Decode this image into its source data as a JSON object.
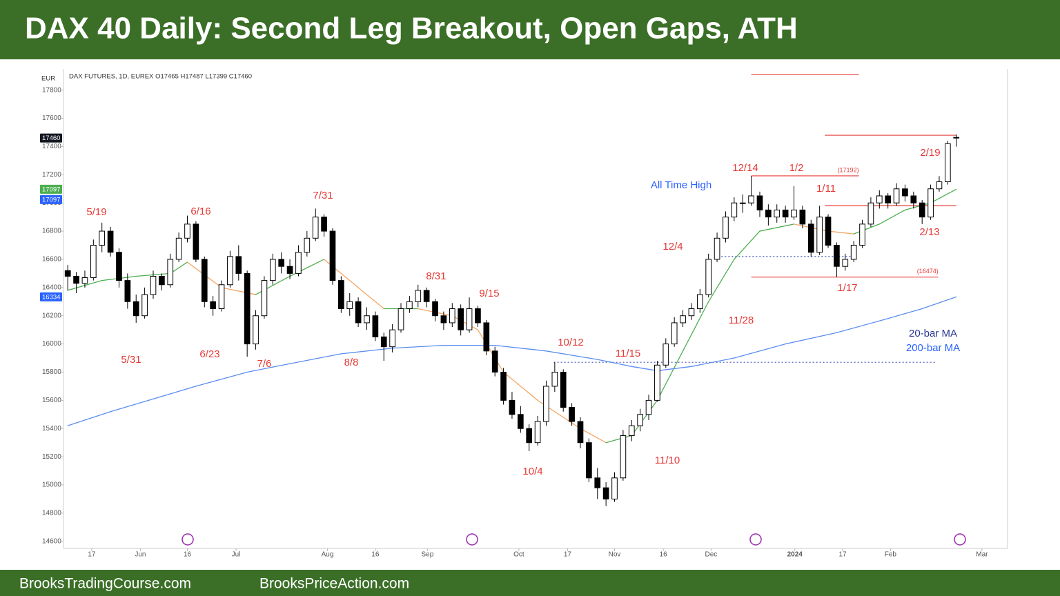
{
  "header": {
    "title": "DAX 40 Daily: Second Leg Breakout, Open Gaps, ATH"
  },
  "chart_data": {
    "type": "candlestick",
    "symbol_info": "DAX FUTURES, 1D, EUREX  O17465 H17487 L17399 C17460",
    "currency": "EUR",
    "up_color": "#ffffff",
    "down_color": "#000000",
    "ohlc": [
      [
        16520,
        16560,
        16380,
        16480
      ],
      [
        16480,
        16510,
        16360,
        16430
      ],
      [
        16430,
        16520,
        16400,
        16470
      ],
      [
        16470,
        16740,
        16450,
        16700
      ],
      [
        16700,
        16860,
        16650,
        16800
      ],
      [
        16800,
        16830,
        16620,
        16650
      ],
      [
        16650,
        16680,
        16400,
        16450
      ],
      [
        16450,
        16500,
        16250,
        16300
      ],
      [
        16300,
        16350,
        16150,
        16200
      ],
      [
        16200,
        16400,
        16180,
        16350
      ],
      [
        16350,
        16520,
        16320,
        16480
      ],
      [
        16480,
        16500,
        16380,
        16420
      ],
      [
        16420,
        16640,
        16400,
        16600
      ],
      [
        16600,
        16790,
        16580,
        16750
      ],
      [
        16750,
        16910,
        16720,
        16850
      ],
      [
        16850,
        16870,
        16580,
        16600
      ],
      [
        16600,
        16620,
        16260,
        16300
      ],
      [
        16300,
        16340,
        16200,
        16250
      ],
      [
        16250,
        16450,
        16230,
        16420
      ],
      [
        16420,
        16660,
        16400,
        16620
      ],
      [
        16620,
        16700,
        16450,
        16500
      ],
      [
        16500,
        16520,
        15910,
        16000
      ],
      [
        16000,
        16240,
        15960,
        16200
      ],
      [
        16200,
        16480,
        16180,
        16450
      ],
      [
        16450,
        16640,
        16420,
        16600
      ],
      [
        16600,
        16650,
        16500,
        16550
      ],
      [
        16550,
        16600,
        16460,
        16500
      ],
      [
        16500,
        16700,
        16480,
        16650
      ],
      [
        16650,
        16800,
        16620,
        16750
      ],
      [
        16750,
        16960,
        16730,
        16900
      ],
      [
        16900,
        16920,
        16760,
        16800
      ],
      [
        16800,
        16820,
        16420,
        16450
      ],
      [
        16450,
        16480,
        16220,
        16250
      ],
      [
        16250,
        16360,
        16200,
        16300
      ],
      [
        16300,
        16330,
        16120,
        16150
      ],
      [
        16150,
        16260,
        16100,
        16200
      ],
      [
        16200,
        16230,
        16020,
        16050
      ],
      [
        16050,
        16080,
        15880,
        15980
      ],
      [
        15980,
        16140,
        15940,
        16100
      ],
      [
        16100,
        16290,
        16080,
        16250
      ],
      [
        16250,
        16340,
        16220,
        16300
      ],
      [
        16300,
        16420,
        16260,
        16380
      ],
      [
        16380,
        16400,
        16260,
        16300
      ],
      [
        16300,
        16320,
        16160,
        16200
      ],
      [
        16200,
        16230,
        16100,
        16150
      ],
      [
        16150,
        16290,
        16120,
        16250
      ],
      [
        16250,
        16280,
        16060,
        16100
      ],
      [
        16100,
        16330,
        16080,
        16250
      ],
      [
        16250,
        16270,
        16120,
        16150
      ],
      [
        16150,
        16170,
        15920,
        15950
      ],
      [
        15950,
        15980,
        15770,
        15800
      ],
      [
        15800,
        15830,
        15570,
        15600
      ],
      [
        15600,
        15660,
        15470,
        15500
      ],
      [
        15500,
        15560,
        15370,
        15400
      ],
      [
        15400,
        15430,
        15240,
        15300
      ],
      [
        15300,
        15490,
        15280,
        15450
      ],
      [
        15450,
        15740,
        15420,
        15700
      ],
      [
        15700,
        15870,
        15660,
        15800
      ],
      [
        15800,
        15820,
        15520,
        15550
      ],
      [
        15550,
        15580,
        15420,
        15450
      ],
      [
        15450,
        15480,
        15260,
        15300
      ],
      [
        15300,
        15330,
        15020,
        15050
      ],
      [
        15050,
        15120,
        14900,
        14980
      ],
      [
        14980,
        15020,
        14850,
        14900
      ],
      [
        14900,
        15090,
        14880,
        15050
      ],
      [
        15050,
        15390,
        15030,
        15350
      ],
      [
        15350,
        15460,
        15310,
        15420
      ],
      [
        15420,
        15540,
        15380,
        15500
      ],
      [
        15500,
        15640,
        15460,
        15600
      ],
      [
        15600,
        15880,
        15590,
        15850
      ],
      [
        15850,
        16040,
        15830,
        16000
      ],
      [
        16000,
        16190,
        15980,
        16150
      ],
      [
        16150,
        16240,
        16120,
        16200
      ],
      [
        16200,
        16290,
        16170,
        16250
      ],
      [
        16250,
        16390,
        16220,
        16350
      ],
      [
        16350,
        16640,
        16330,
        16600
      ],
      [
        16600,
        16790,
        16580,
        16750
      ],
      [
        16750,
        16940,
        16720,
        16900
      ],
      [
        16900,
        17040,
        16870,
        17000
      ],
      [
        17000,
        17060,
        16930,
        17000
      ],
      [
        17000,
        17192,
        16980,
        17050
      ],
      [
        17050,
        17080,
        16900,
        16950
      ],
      [
        16950,
        16990,
        16840,
        16900
      ],
      [
        16900,
        16990,
        16860,
        16950
      ],
      [
        16950,
        16980,
        16860,
        16900
      ],
      [
        16900,
        17120,
        16880,
        16950
      ],
      [
        16950,
        16980,
        16820,
        16850
      ],
      [
        16850,
        16880,
        16620,
        16650
      ],
      [
        16650,
        16980,
        16630,
        16900
      ],
      [
        16900,
        16920,
        16680,
        16700
      ],
      [
        16700,
        16720,
        16474,
        16550
      ],
      [
        16550,
        16640,
        16520,
        16600
      ],
      [
        16600,
        16730,
        16580,
        16700
      ],
      [
        16700,
        16880,
        16680,
        16850
      ],
      [
        16850,
        17040,
        16830,
        17000
      ],
      [
        17000,
        17090,
        16960,
        17050
      ],
      [
        17050,
        17070,
        16960,
        17000
      ],
      [
        17000,
        17140,
        16980,
        17100
      ],
      [
        17100,
        17130,
        17010,
        17050
      ],
      [
        17050,
        17080,
        16960,
        17000
      ],
      [
        17000,
        17020,
        16850,
        16900
      ],
      [
        16900,
        17130,
        16880,
        17100
      ],
      [
        17100,
        17190,
        17080,
        17150
      ],
      [
        17150,
        17440,
        17130,
        17420
      ],
      [
        17465,
        17487,
        17399,
        17460
      ]
    ],
    "moving_averages": [
      {
        "name": "20-bar MA",
        "color": "#4caf50",
        "down_color": "#f4a460",
        "x": [
          0,
          4,
          8,
          12,
          14,
          18,
          22,
          26,
          30,
          33,
          37,
          41,
          45,
          48,
          51,
          55,
          60,
          63,
          66,
          69,
          72,
          75,
          78,
          81,
          85,
          89,
          92,
          95,
          98,
          101,
          104
        ],
        "values": [
          16380,
          16450,
          16480,
          16500,
          16580,
          16400,
          16350,
          16480,
          16600,
          16450,
          16250,
          16250,
          16200,
          16100,
          15800,
          15600,
          15400,
          15300,
          15350,
          15600,
          15950,
          16300,
          16600,
          16800,
          16850,
          16800,
          16780,
          16850,
          16950,
          17000,
          17097
        ]
      },
      {
        "name": "200-bar MA",
        "color": "#5b8def",
        "x": [
          0,
          5,
          10,
          15,
          21,
          26,
          32,
          38,
          44,
          50,
          56,
          62,
          66,
          69,
          73,
          78,
          84,
          90,
          96,
          100,
          104
        ],
        "values": [
          15420,
          15520,
          15610,
          15700,
          15800,
          15860,
          15930,
          15970,
          15990,
          15990,
          15950,
          15890,
          15840,
          15810,
          15840,
          15900,
          16000,
          16080,
          16180,
          16250,
          16334
        ]
      }
    ],
    "annotations": [
      "5/19",
      "6/16",
      "7/31",
      "5/31",
      "6/23",
      "7/6",
      "8/8",
      "8/31",
      "9/15",
      "10/4",
      "10/12",
      "11/10",
      "11/15",
      "11/28",
      "12/4",
      "12/14",
      "1/2",
      "1/11",
      "1/17",
      "2/13",
      "2/19"
    ],
    "ath_note": "All Time High",
    "levels": [
      {
        "value": 17910,
        "x": [
          80,
          92.6
        ],
        "color": "#e53935"
      },
      {
        "value": 17480,
        "x": [
          88.6,
          104
        ],
        "color": "#e53935"
      },
      {
        "value": 17192,
        "x": [
          80,
          92.6
        ],
        "color": "#e53935",
        "label": "(17192)"
      },
      {
        "value": 16980,
        "x": [
          88.6,
          104
        ],
        "color": "#e53935"
      },
      {
        "value": 16474,
        "x": [
          80,
          101.9
        ],
        "color": "#e53935",
        "label": "(16474)"
      },
      {
        "value": 16620,
        "x": [
          76.1,
          92.2
        ],
        "color": "#3f51b5",
        "dotted": true
      },
      {
        "value": 15870,
        "x": [
          56.9,
          101.5
        ],
        "color": "#3f51b5",
        "dotted": true
      }
    ],
    "price_labels": [
      {
        "value": 17460,
        "color": "#131722"
      },
      {
        "value": 17097,
        "color": "#4caf50"
      },
      {
        "value": 17097,
        "color": "#2962ff"
      },
      {
        "value": 16334,
        "color": "#2962ff"
      }
    ],
    "ylim": [
      14550,
      17950
    ],
    "yticks": [
      14600,
      14800,
      15000,
      15200,
      15400,
      15600,
      15800,
      16000,
      16200,
      16400,
      16600,
      16800,
      17000,
      17200,
      17400,
      17600,
      17800
    ],
    "xlim": [
      -0.5,
      110
    ],
    "xticks": [
      {
        "value": 2.8,
        "label": "17"
      },
      {
        "value": 8.5,
        "label": "Jun"
      },
      {
        "value": 14.0,
        "label": "16"
      },
      {
        "value": 19.7,
        "label": "Jul"
      },
      {
        "value": 30.4,
        "label": "Aug"
      },
      {
        "value": 36.0,
        "label": "16"
      },
      {
        "value": 42.1,
        "label": "Sep"
      },
      {
        "value": 52.8,
        "label": "Oct"
      },
      {
        "value": 58.5,
        "label": "17"
      },
      {
        "value": 64.0,
        "label": "Nov"
      },
      {
        "value": 69.7,
        "label": "16"
      },
      {
        "value": 75.3,
        "label": "Dec"
      },
      {
        "value": 85.1,
        "label": "2024"
      },
      {
        "value": 90.7,
        "label": "17"
      },
      {
        "value": 96.3,
        "label": "Feb"
      },
      {
        "value": 107.0,
        "label": "Mar"
      }
    ]
  },
  "footer": {
    "left": "BrooksTradingCourse.com",
    "right": "BrooksPriceAction.com"
  }
}
